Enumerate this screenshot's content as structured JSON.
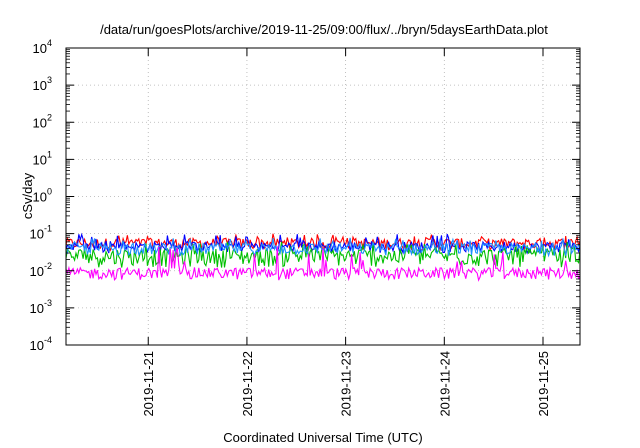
{
  "chart_data": {
    "type": "line",
    "title": "/data/run/goesPlots/archive/2019-11-25/09:00/flux/../bryn/5daysEarthData.plot",
    "xlabel": "Coordinated Universal Time (UTC)",
    "ylabel": "cSv/day",
    "yscale": "log",
    "ylim": [
      0.0001,
      10000
    ],
    "y_ticks": [
      {
        "base": "10",
        "exp": "-4",
        "value": 0.0001
      },
      {
        "base": "10",
        "exp": "-3",
        "value": 0.001
      },
      {
        "base": "10",
        "exp": "-2",
        "value": 0.01
      },
      {
        "base": "10",
        "exp": "-1",
        "value": 0.1
      },
      {
        "base": "10",
        "exp": "0",
        "value": 1
      },
      {
        "base": "10",
        "exp": "1",
        "value": 10
      },
      {
        "base": "10",
        "exp": "2",
        "value": 100
      },
      {
        "base": "10",
        "exp": "3",
        "value": 1000
      },
      {
        "base": "10",
        "exp": "4",
        "value": 10000
      }
    ],
    "xlim": [
      "2019-11-20T04:00",
      "2019-11-25T09:00"
    ],
    "x_ticks": [
      "2019-11-21",
      "2019-11-22",
      "2019-11-23",
      "2019-11-24",
      "2019-11-25"
    ],
    "grid": true,
    "legend": "none",
    "series": [
      {
        "color": "#ff0000",
        "low": 0.035,
        "high": 0.075,
        "spike_high": 0.1
      },
      {
        "color": "#0000ff",
        "low": 0.03,
        "high": 0.06,
        "spike_high": 0.1
      },
      {
        "color": "#00c000",
        "low": 0.012,
        "high": 0.04,
        "spike_high": 0.06
      },
      {
        "color": "#1e90ff",
        "low": 0.025,
        "high": 0.055,
        "spike_high": 0.08
      },
      {
        "color": "#ff00ff",
        "low": 0.0055,
        "high": 0.012,
        "spike_high": 0.05
      }
    ]
  }
}
